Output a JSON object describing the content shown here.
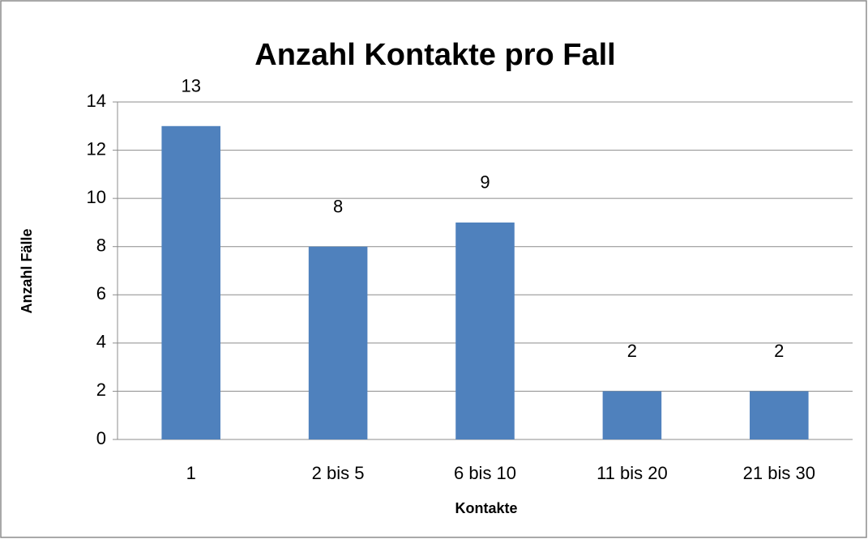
{
  "chart_data": {
    "type": "bar",
    "title": "Anzahl Kontakte pro Fall",
    "x_label": "Kontakte",
    "y_label": "Anzahl Fälle",
    "categories": [
      "1",
      "2 bis 5",
      "6 bis 10",
      "11 bis 20",
      "21 bis 30"
    ],
    "values": [
      13,
      8,
      9,
      2,
      2
    ],
    "color": "#4f81bd",
    "ylim": [
      0,
      14
    ],
    "yticks": [
      0,
      2,
      4,
      6,
      8,
      10,
      12,
      14
    ],
    "grid": true
  }
}
